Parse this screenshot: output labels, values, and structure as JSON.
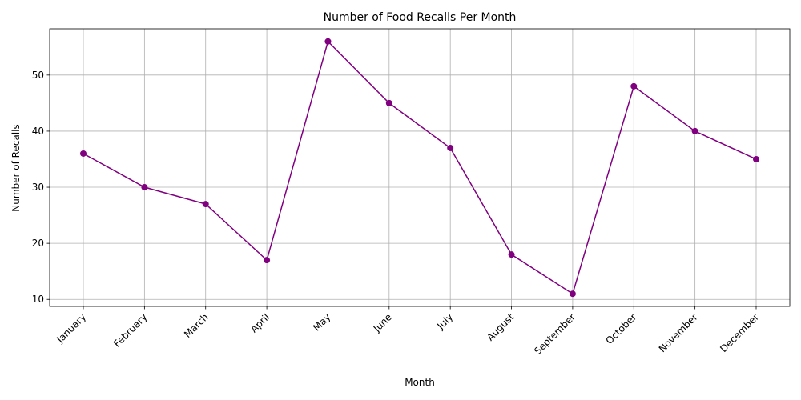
{
  "chart_data": {
    "type": "line",
    "title": "Number of Food Recalls Per Month",
    "xlabel": "Month",
    "ylabel": "Number of Recalls",
    "categories": [
      "January",
      "February",
      "March",
      "April",
      "May",
      "June",
      "July",
      "August",
      "September",
      "October",
      "November",
      "December"
    ],
    "series": [
      {
        "values": [
          36,
          30,
          27,
          17,
          56,
          45,
          37,
          18,
          11,
          48,
          40,
          35
        ],
        "color": "#800080",
        "marker": "circle"
      }
    ],
    "ylim": [
      8.75,
      58.25
    ],
    "yticks": [
      10,
      20,
      30,
      40,
      50
    ],
    "grid": true
  }
}
